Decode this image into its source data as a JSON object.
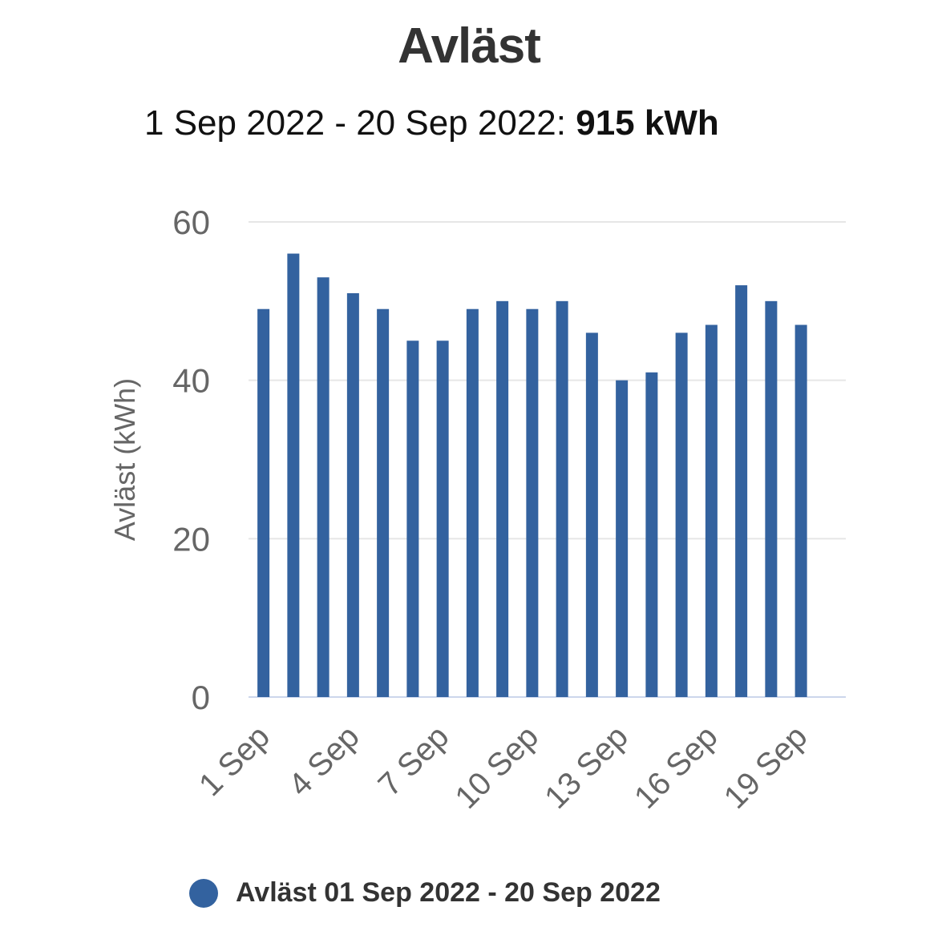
{
  "title": "Avläst",
  "subtitle": {
    "range": "1 Sep 2022 - 20 Sep 2022:",
    "total": "915",
    "unit": "kWh"
  },
  "legend": {
    "label": "Avläst 01 Sep 2022 - 20 Sep 2022"
  },
  "colors": {
    "bar": "#33629f",
    "grid": "#e6e6e6",
    "axis": "#ccd6eb",
    "label": "#666666"
  },
  "chart_data": {
    "type": "bar",
    "title": "Avläst",
    "ylabel": "Avläst (kWh)",
    "xlabel": "",
    "ylim": [
      0,
      60
    ],
    "yticks": [
      0,
      20,
      40,
      60
    ],
    "grid": true,
    "legend_position": "bottom",
    "categories": [
      "1 Sep",
      "2 Sep",
      "3 Sep",
      "4 Sep",
      "5 Sep",
      "6 Sep",
      "7 Sep",
      "8 Sep",
      "9 Sep",
      "10 Sep",
      "11 Sep",
      "12 Sep",
      "13 Sep",
      "14 Sep",
      "15 Sep",
      "16 Sep",
      "17 Sep",
      "18 Sep",
      "19 Sep",
      "20 Sep"
    ],
    "xtick_labels": [
      "1 Sep",
      "4 Sep",
      "7 Sep",
      "10 Sep",
      "13 Sep",
      "16 Sep",
      "19 Sep"
    ],
    "series": [
      {
        "name": "Avläst 01 Sep 2022 - 20 Sep 2022",
        "values": [
          49,
          56,
          53,
          51,
          49,
          45,
          45,
          49,
          50,
          49,
          50,
          46,
          40,
          41,
          46,
          47,
          52,
          50,
          47,
          null
        ]
      }
    ]
  }
}
